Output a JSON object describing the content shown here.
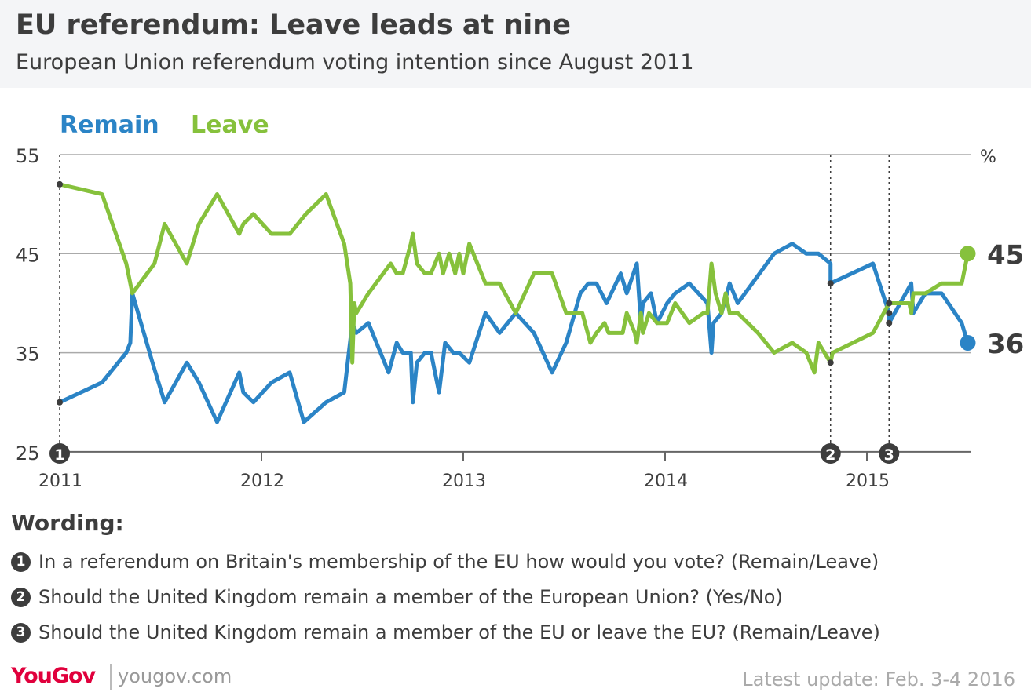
{
  "header": {
    "title": "EU referendum: Leave leads at nine",
    "subtitle": "European Union referendum voting intention since August 2011"
  },
  "colors": {
    "remain": "#2b84c6",
    "leave": "#86c13c",
    "dark": "#3d3d3d"
  },
  "chart_data": {
    "type": "line",
    "xlabel": "",
    "ylabel": "%",
    "xlim": [
      2011,
      2015.55
    ],
    "ylim": [
      25,
      55
    ],
    "x_ticks": [
      "2011",
      "2012",
      "2013",
      "2014",
      "2015"
    ],
    "y_ticks": [
      "55",
      "45",
      "35",
      "25"
    ],
    "grid": true,
    "legend_placement": "top-left",
    "series": [
      {
        "name": "Remain",
        "color": "#2b84c6",
        "end_label": "36",
        "points": [
          [
            2011.0,
            30
          ],
          [
            2011.21,
            32
          ],
          [
            2011.33,
            35
          ],
          [
            2011.35,
            36
          ],
          [
            2011.36,
            41
          ],
          [
            2011.46,
            34
          ],
          [
            2011.52,
            30
          ],
          [
            2011.63,
            34
          ],
          [
            2011.69,
            32
          ],
          [
            2011.78,
            28
          ],
          [
            2011.89,
            33
          ],
          [
            2011.91,
            31
          ],
          [
            2011.96,
            30
          ],
          [
            2012.05,
            32
          ],
          [
            2012.14,
            33
          ],
          [
            2012.21,
            28
          ],
          [
            2012.32,
            30
          ],
          [
            2012.41,
            31
          ],
          [
            2012.45,
            38
          ],
          [
            2012.47,
            37
          ],
          [
            2012.53,
            38
          ],
          [
            2012.63,
            33
          ],
          [
            2012.67,
            36
          ],
          [
            2012.7,
            35
          ],
          [
            2012.74,
            35
          ],
          [
            2012.75,
            30
          ],
          [
            2012.77,
            34
          ],
          [
            2012.81,
            35
          ],
          [
            2012.84,
            35
          ],
          [
            2012.88,
            31
          ],
          [
            2012.91,
            36
          ],
          [
            2012.95,
            35
          ],
          [
            2012.98,
            35
          ],
          [
            2013.03,
            34
          ],
          [
            2013.11,
            39
          ],
          [
            2013.18,
            37
          ],
          [
            2013.26,
            39
          ],
          [
            2013.35,
            37
          ],
          [
            2013.44,
            33
          ],
          [
            2013.51,
            36
          ],
          [
            2013.58,
            41
          ],
          [
            2013.62,
            42
          ],
          [
            2013.66,
            42
          ],
          [
            2013.71,
            40
          ],
          [
            2013.78,
            43
          ],
          [
            2013.81,
            41
          ],
          [
            2013.86,
            44
          ],
          [
            2013.88,
            38
          ],
          [
            2013.89,
            40
          ],
          [
            2013.93,
            41
          ],
          [
            2013.96,
            38
          ],
          [
            2014.01,
            40
          ],
          [
            2014.05,
            41
          ],
          [
            2014.12,
            42
          ],
          [
            2014.21,
            40
          ],
          [
            2014.23,
            35
          ],
          [
            2014.24,
            38
          ],
          [
            2014.28,
            39
          ],
          [
            2014.32,
            42
          ],
          [
            2014.36,
            40
          ],
          [
            2014.54,
            45
          ],
          [
            2014.63,
            46
          ],
          [
            2014.7,
            45
          ],
          [
            2014.76,
            45
          ],
          [
            2014.82,
            44
          ],
          [
            2014.82,
            42
          ],
          [
            2015.03,
            44
          ],
          [
            2015.11,
            39
          ],
          [
            2015.11,
            38
          ],
          [
            2015.22,
            42
          ],
          [
            2015.23,
            39
          ],
          [
            2015.29,
            41
          ],
          [
            2015.37,
            41
          ],
          [
            2015.47,
            38
          ],
          [
            2015.5,
            36
          ]
        ]
      },
      {
        "name": "Leave",
        "color": "#86c13c",
        "end_label": "45",
        "points": [
          [
            2011.0,
            52
          ],
          [
            2011.21,
            51
          ],
          [
            2011.33,
            44
          ],
          [
            2011.36,
            41
          ],
          [
            2011.47,
            44
          ],
          [
            2011.52,
            48
          ],
          [
            2011.63,
            44
          ],
          [
            2011.69,
            48
          ],
          [
            2011.78,
            51
          ],
          [
            2011.89,
            47
          ],
          [
            2011.91,
            48
          ],
          [
            2011.96,
            49
          ],
          [
            2012.05,
            47
          ],
          [
            2012.14,
            47
          ],
          [
            2012.22,
            49
          ],
          [
            2012.32,
            51
          ],
          [
            2012.41,
            46
          ],
          [
            2012.44,
            42
          ],
          [
            2012.45,
            34
          ],
          [
            2012.46,
            40
          ],
          [
            2012.47,
            39
          ],
          [
            2012.53,
            41
          ],
          [
            2012.64,
            44
          ],
          [
            2012.67,
            43
          ],
          [
            2012.7,
            43
          ],
          [
            2012.74,
            46
          ],
          [
            2012.75,
            47
          ],
          [
            2012.77,
            44
          ],
          [
            2012.81,
            43
          ],
          [
            2012.84,
            43
          ],
          [
            2012.88,
            45
          ],
          [
            2012.9,
            43
          ],
          [
            2012.93,
            45
          ],
          [
            2012.96,
            43
          ],
          [
            2012.98,
            45
          ],
          [
            2013.0,
            43
          ],
          [
            2013.03,
            46
          ],
          [
            2013.11,
            42
          ],
          [
            2013.18,
            42
          ],
          [
            2013.26,
            39
          ],
          [
            2013.35,
            43
          ],
          [
            2013.44,
            43
          ],
          [
            2013.51,
            39
          ],
          [
            2013.59,
            39
          ],
          [
            2013.63,
            36
          ],
          [
            2013.66,
            37
          ],
          [
            2013.7,
            38
          ],
          [
            2013.72,
            37
          ],
          [
            2013.79,
            37
          ],
          [
            2013.81,
            39
          ],
          [
            2013.85,
            37
          ],
          [
            2013.86,
            36
          ],
          [
            2013.88,
            39
          ],
          [
            2013.89,
            37
          ],
          [
            2013.92,
            39
          ],
          [
            2013.96,
            38
          ],
          [
            2014.01,
            38
          ],
          [
            2014.05,
            40
          ],
          [
            2014.12,
            38
          ],
          [
            2014.19,
            39
          ],
          [
            2014.21,
            39
          ],
          [
            2014.23,
            44
          ],
          [
            2014.25,
            41
          ],
          [
            2014.28,
            39
          ],
          [
            2014.3,
            41
          ],
          [
            2014.32,
            39
          ],
          [
            2014.36,
            39
          ],
          [
            2014.46,
            37
          ],
          [
            2014.54,
            35
          ],
          [
            2014.63,
            36
          ],
          [
            2014.7,
            35
          ],
          [
            2014.74,
            33
          ],
          [
            2014.76,
            36
          ],
          [
            2014.82,
            34
          ],
          [
            2014.83,
            35
          ],
          [
            2015.03,
            37
          ],
          [
            2015.11,
            40
          ],
          [
            2015.21,
            40
          ],
          [
            2015.22,
            39
          ],
          [
            2015.23,
            41
          ],
          [
            2015.29,
            41
          ],
          [
            2015.37,
            42
          ],
          [
            2015.47,
            42
          ],
          [
            2015.5,
            45
          ]
        ]
      }
    ],
    "markers": [
      {
        "label": "1",
        "x": 2011.0
      },
      {
        "label": "2",
        "x": 2014.82
      },
      {
        "label": "3",
        "x": 2015.11
      }
    ]
  },
  "wording": {
    "title": "Wording:",
    "notes": [
      {
        "num": "1",
        "text": "In a referendum on Britain's membership of the EU how would you vote? (Remain/Leave)"
      },
      {
        "num": "2",
        "text": "Should the United Kingdom remain a member of the European Union? (Yes/No)"
      },
      {
        "num": "3",
        "text": "Should the United Kingdom remain a member of the EU or leave the EU? (Remain/Leave)"
      }
    ]
  },
  "footer": {
    "logo": "YouGov",
    "site": "yougov.com",
    "update": "Latest update: Feb. 3-4 2016"
  }
}
